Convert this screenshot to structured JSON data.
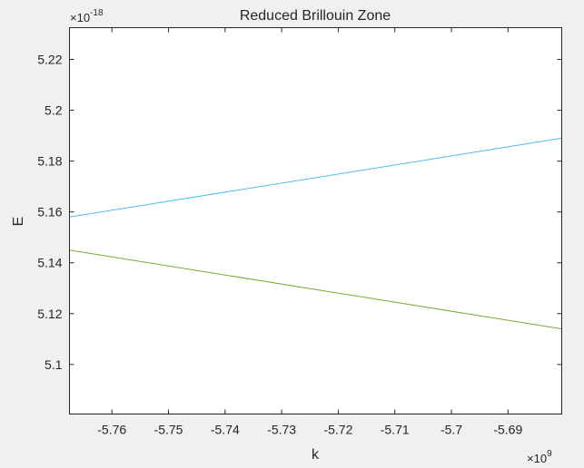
{
  "chart_data": {
    "type": "line",
    "title": "Reduced Brillouin Zone",
    "xlabel": "k",
    "ylabel": "E",
    "x_exponent_label": "×10",
    "x_exponent": "9",
    "y_exponent_label": "×10",
    "y_exponent": "-18",
    "xlim": [
      -5.7675,
      -5.6805
    ],
    "ylim": [
      5.0805,
      5.2325
    ],
    "x_ticks": [
      -5.76,
      -5.75,
      -5.74,
      -5.73,
      -5.72,
      -5.71,
      -5.7,
      -5.69
    ],
    "x_tick_labels": [
      "-5.76",
      "-5.75",
      "-5.74",
      "-5.73",
      "-5.72",
      "-5.71",
      "-5.7",
      "-5.69"
    ],
    "y_ticks": [
      5.1,
      5.12,
      5.14,
      5.16,
      5.18,
      5.2,
      5.22
    ],
    "y_tick_labels": [
      "5.1",
      "5.12",
      "5.14",
      "5.16",
      "5.18",
      "5.2",
      "5.22"
    ],
    "grid": false,
    "series": [
      {
        "color": "#4DBEEE",
        "x": [
          -5.7675,
          -5.6805
        ],
        "y": [
          5.158,
          5.189
        ]
      },
      {
        "color": "#77AC30",
        "x": [
          -5.7675,
          -5.6805
        ],
        "y": [
          5.145,
          5.114
        ]
      }
    ]
  }
}
